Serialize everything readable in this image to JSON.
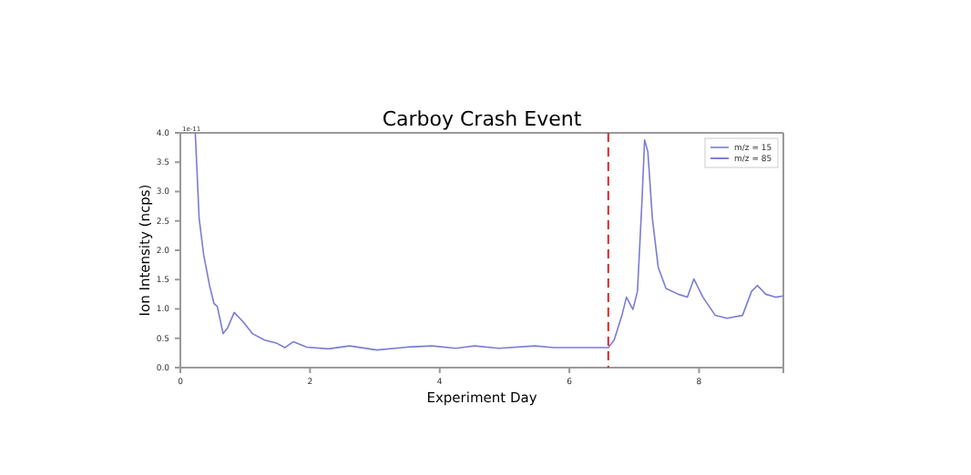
{
  "chart_data": {
    "type": "line",
    "title": "Carboy Crash Event",
    "xlabel": "Experiment Day",
    "ylabel": "Ion Intensity (ncps)",
    "annotations": [
      "1e-11"
    ],
    "xlim": [
      0,
      9.3
    ],
    "xticks": [
      0,
      2,
      4,
      6,
      8
    ],
    "ylim": [
      0,
      4
    ],
    "yticks": [
      {
        "value": 0,
        "label": "0.0"
      },
      {
        "value": 0.5,
        "label": "0.5"
      },
      {
        "value": 1,
        "label": "1.0"
      },
      {
        "value": 1.5,
        "label": "1.5"
      },
      {
        "value": 2,
        "label": "2.0"
      },
      {
        "value": 2.5,
        "label": "2.5"
      },
      {
        "value": 3,
        "label": "3.0"
      },
      {
        "value": 3.5,
        "label": "3.5"
      },
      {
        "value": 4,
        "label": "4.0"
      }
    ],
    "legend": "top right",
    "line_style": "solid",
    "marker": "none",
    "ref_lines": [
      {
        "axis": "x",
        "value": 6.6,
        "color": "#d62728",
        "line_style": "dashed"
      }
    ],
    "series": [
      {
        "name": "m/z = 15",
        "color": "#7b7bd6",
        "x": [
          0.23,
          0.29,
          0.36,
          0.45,
          0.52,
          0.57,
          0.66,
          0.73,
          0.83,
          0.97,
          1.11,
          1.3,
          1.48,
          1.61,
          1.74,
          1.95,
          2.28,
          2.61,
          3.03,
          3.5,
          3.88,
          4.25,
          4.54,
          4.91,
          5.47,
          5.76,
          6.6,
          6.69,
          6.81,
          6.88,
          6.98,
          7.05,
          7.12,
          7.16,
          7.21,
          7.28,
          7.37,
          7.49,
          7.68,
          7.82,
          7.92,
          8.06,
          8.25,
          8.43,
          8.67,
          8.81,
          8.9,
          9.03,
          9.18,
          9.3
        ],
        "values": [
          4.0,
          2.54,
          1.92,
          1.4,
          1.09,
          1.04,
          0.58,
          0.68,
          0.94,
          0.78,
          0.58,
          0.47,
          0.42,
          0.34,
          0.44,
          0.35,
          0.32,
          0.37,
          0.3,
          0.35,
          0.37,
          0.33,
          0.37,
          0.33,
          0.37,
          0.34,
          0.34,
          0.47,
          0.89,
          1.2,
          0.99,
          1.3,
          2.85,
          3.88,
          3.68,
          2.54,
          1.71,
          1.35,
          1.25,
          1.2,
          1.51,
          1.2,
          0.89,
          0.84,
          0.89,
          1.3,
          1.4,
          1.25,
          1.2,
          1.22
        ]
      },
      {
        "name": "m/z = 85",
        "color": "#5f5fd0"
      }
    ]
  }
}
